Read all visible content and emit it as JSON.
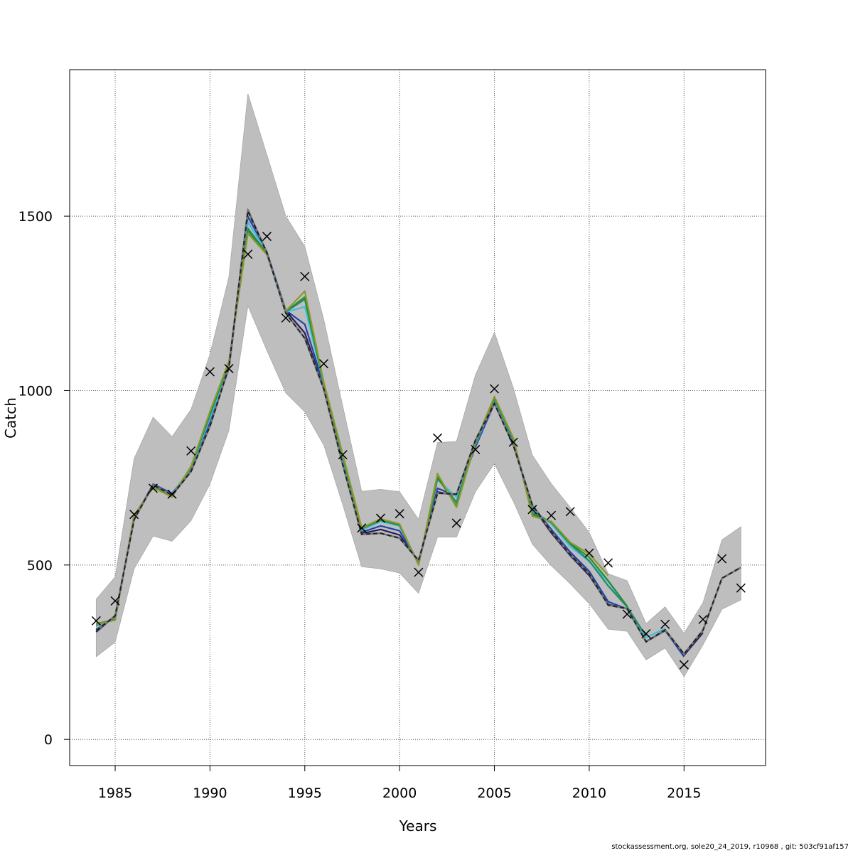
{
  "footer_text": "stockassessment.org, sole20_24_2019, r10968 , git: 503cf91af157",
  "chart_data": {
    "type": "line",
    "xlabel": "Years",
    "ylabel": "Catch",
    "xlim": [
      1982.6,
      2019.3
    ],
    "ylim": [
      -75,
      1920
    ],
    "x_ticks": [
      1985,
      1990,
      1995,
      2000,
      2005,
      2010,
      2015
    ],
    "y_ticks": [
      0,
      500,
      1000,
      1500
    ],
    "grid": true,
    "grid_style": "dotted",
    "band_color": "#bebebe",
    "confidence_band": {
      "x": [
        1984,
        1985,
        1986,
        1987,
        1988,
        1989,
        1990,
        1991,
        1992,
        1993,
        1994,
        1995,
        1996,
        1997,
        1998,
        1999,
        2000,
        2001,
        2002,
        2003,
        2004,
        2005,
        2006,
        2007,
        2008,
        2009,
        2010,
        2011,
        2012,
        2013,
        2014,
        2015,
        2016,
        2017,
        2018
      ],
      "lower": [
        237,
        279,
        489,
        583,
        568,
        627,
        732,
        886,
        1243,
        1115,
        993,
        939,
        844,
        673,
        495,
        489,
        477,
        419,
        580,
        580,
        710,
        791,
        682,
        560,
        498,
        446,
        389,
        316,
        310,
        228,
        262,
        180,
        271,
        373,
        400
      ],
      "upper": [
        402,
        466,
        805,
        924,
        868,
        946,
        1104,
        1326,
        1851,
        1676,
        1500,
        1413,
        1204,
        956,
        711,
        717,
        710,
        631,
        851,
        854,
        1045,
        1167,
        1007,
        815,
        733,
        665,
        593,
        475,
        455,
        332,
        380,
        304,
        392,
        572,
        610
      ]
    },
    "observed": {
      "marker": "x",
      "x": [
        1984,
        1985,
        1986,
        1987,
        1988,
        1989,
        1990,
        1991,
        1992,
        1993,
        1994,
        1995,
        1996,
        1997,
        1998,
        1999,
        2000,
        2001,
        2002,
        2003,
        2004,
        2005,
        2006,
        2007,
        2008,
        2009,
        2010,
        2011,
        2012,
        2013,
        2014,
        2015,
        2016,
        2017,
        2018
      ],
      "values": [
        340,
        397,
        645,
        720,
        703,
        827,
        1054,
        1063,
        1391,
        1442,
        1208,
        1327,
        1077,
        816,
        606,
        634,
        647,
        479,
        864,
        620,
        831,
        1005,
        852,
        659,
        642,
        653,
        534,
        506,
        359,
        303,
        330,
        214,
        344,
        518,
        434
      ]
    },
    "series": [
      {
        "color": "#2b1a5c",
        "dashed": false,
        "x": [
          1984,
          1985,
          1986,
          1987,
          1988,
          1989,
          1990,
          1991,
          1992,
          1993,
          1994,
          1995,
          1996,
          1997,
          1998,
          1999,
          2000,
          2001,
          2002,
          2003,
          2004,
          2005,
          2006,
          2007,
          2008,
          2009,
          2010,
          2011,
          2012,
          2013,
          2014,
          2015,
          2016
        ],
        "values": [
          308,
          355,
          632,
          728,
          700,
          769,
          901,
          1069,
          1518,
          1396,
          1229,
          1165,
          1009,
          790,
          590,
          602,
          586,
          510,
          709,
          700,
          840,
          963,
          845,
          668,
          592,
          527,
          470,
          387,
          375,
          280,
          312,
          241,
          306
        ]
      },
      {
        "color": "#2244aa",
        "dashed": false,
        "x": [
          1984,
          1985,
          1986,
          1987,
          1988,
          1989,
          1990,
          1991,
          1992,
          1993,
          1994,
          1995,
          1996,
          1997,
          1998,
          1999,
          2000,
          2001,
          2002,
          2003,
          2004,
          2005,
          2006,
          2007,
          2008,
          2009,
          2010,
          2011,
          2012,
          2013,
          2014,
          2015
        ],
        "values": [
          315,
          352,
          634,
          732,
          705,
          773,
          908,
          1063,
          1499,
          1398,
          1230,
          1190,
          1015,
          797,
          594,
          612,
          598,
          505,
          720,
          698,
          838,
          965,
          850,
          670,
          602,
          537,
          482,
          395,
          374,
          281,
          313,
          237
        ]
      },
      {
        "color": "#40c0d8",
        "dashed": false,
        "x": [
          1984,
          1985,
          1986,
          1987,
          1988,
          1989,
          1990,
          1991,
          1992,
          1993,
          1994,
          1995,
          1996,
          1997,
          1998,
          1999,
          2000,
          2001,
          2002,
          2003,
          2004,
          2005,
          2006,
          2007,
          2008,
          2009,
          2010,
          2011,
          2012,
          2013,
          2014
        ],
        "values": [
          325,
          348,
          638,
          728,
          702,
          778,
          920,
          1075,
          1483,
          1395,
          1225,
          1240,
          1018,
          808,
          600,
          625,
          612,
          503,
          745,
          695,
          845,
          973,
          858,
          660,
          618,
          553,
          510,
          452,
          378,
          292,
          318
        ]
      },
      {
        "color": "#1f8a70",
        "dashed": false,
        "x": [
          1984,
          1985,
          1986,
          1987,
          1988,
          1989,
          1990,
          1991,
          1992,
          1993,
          1994,
          1995,
          1996,
          1997,
          1998,
          1999,
          2000,
          2001,
          2002,
          2003,
          2004,
          2005,
          2006,
          2007,
          2008,
          2009,
          2010,
          2011,
          2012,
          2013
        ],
        "values": [
          328,
          345,
          640,
          725,
          698,
          780,
          930,
          1080,
          1465,
          1393,
          1226,
          1262,
          1020,
          812,
          604,
          628,
          614,
          502,
          748,
          680,
          848,
          977,
          860,
          650,
          622,
          560,
          512,
          440,
          380,
          296
        ]
      },
      {
        "color": "#2e8b2e",
        "dashed": false,
        "x": [
          1984,
          1985,
          1986,
          1987,
          1988,
          1989,
          1990,
          1991,
          1992,
          1993,
          1994,
          1995,
          1996,
          1997,
          1998,
          1999,
          2000,
          2001,
          2002,
          2003,
          2004,
          2005,
          2006,
          2007,
          2008,
          2009,
          2010,
          2011,
          2012
        ],
        "values": [
          332,
          343,
          642,
          723,
          697,
          782,
          935,
          1082,
          1458,
          1392,
          1227,
          1268,
          1022,
          815,
          605,
          630,
          616,
          501,
          752,
          670,
          850,
          980,
          862,
          645,
          624,
          562,
          522,
          455,
          382
        ]
      },
      {
        "color": "#8a9a2e",
        "dashed": false,
        "x": [
          1984,
          1985,
          1986,
          1987,
          1988,
          1989,
          1990,
          1991,
          1992,
          1993,
          1994,
          1995,
          1996,
          1997,
          1998,
          1999,
          2000,
          2001,
          2002,
          2003,
          2004,
          2005,
          2006,
          2007,
          2008,
          2009,
          2010,
          2011
        ],
        "values": [
          330,
          342,
          643,
          722,
          695,
          783,
          940,
          1084,
          1450,
          1390,
          1228,
          1285,
          1024,
          818,
          607,
          632,
          618,
          500,
          762,
          665,
          852,
          983,
          864,
          640,
          625,
          565,
          532,
          470
        ]
      },
      {
        "color": "#222222",
        "dashed": true,
        "x": [
          1984,
          1985,
          1986,
          1987,
          1988,
          1989,
          1990,
          1991,
          1992,
          1993,
          1994,
          1995,
          1996,
          1997,
          1998,
          1999,
          2000,
          2001,
          2002,
          2003,
          2004,
          2005,
          2006,
          2007,
          2008,
          2009,
          2010,
          2011,
          2012,
          2013,
          2014,
          2015,
          2016,
          2017,
          2018
        ],
        "values": [
          312,
          354,
          630,
          730,
          700,
          768,
          898,
          1068,
          1515,
          1395,
          1222,
          1150,
          1005,
          788,
          588,
          591,
          577,
          513,
          706,
          703,
          858,
          963,
          843,
          672,
          596,
          530,
          475,
          385,
          375,
          280,
          314,
          245,
          313,
          462,
          493
        ]
      }
    ]
  }
}
